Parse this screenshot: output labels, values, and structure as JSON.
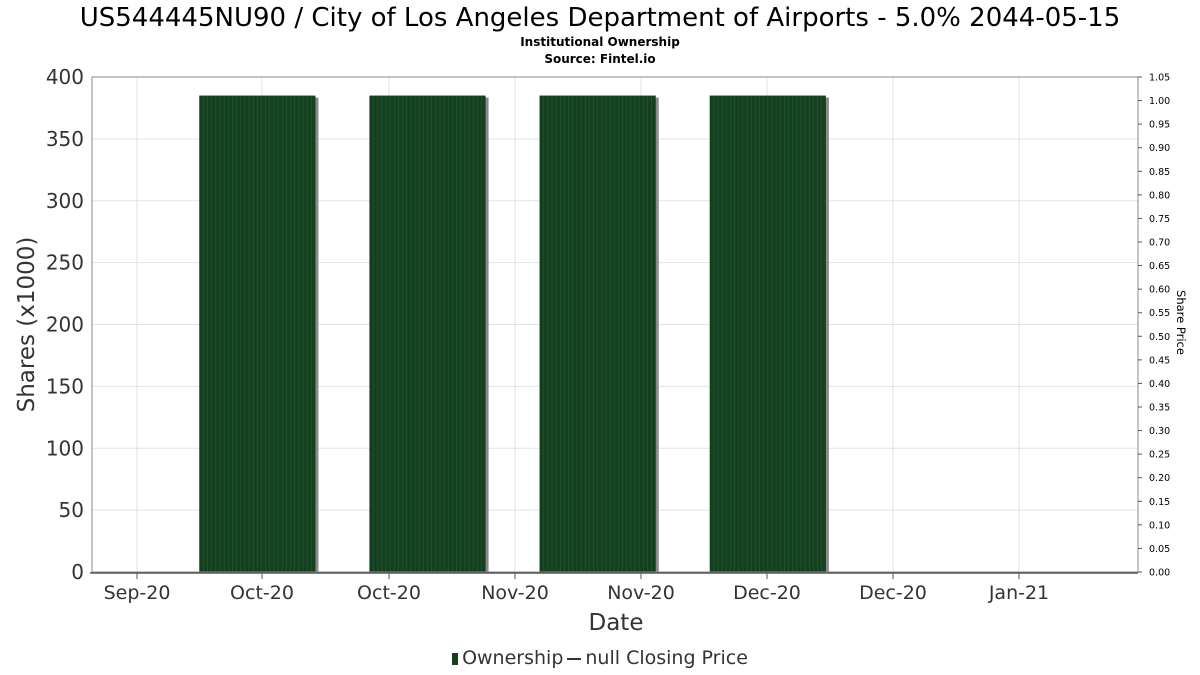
{
  "title": "US544445NU90 / City of Los Angeles Department of Airports - 5.0% 2044-05-15",
  "subtitle": "Institutional Ownership",
  "source": "Source: Fintel.io",
  "legend": {
    "ownership": "Ownership",
    "price": "null Closing Price"
  },
  "colors": {
    "bar": "#14401f",
    "bar_stripe": "#2c6636",
    "bar_shadow": "#8a8a8a",
    "grid": "#e3e3e3",
    "axis": "#888888"
  },
  "chart_data": {
    "type": "bar",
    "xlabel": "Date",
    "ylabel": "Shares (x1000)",
    "y2label": "Share Price",
    "ylim": [
      0,
      400
    ],
    "y2lim": [
      0,
      1.05
    ],
    "yticks": [
      0,
      50,
      100,
      150,
      200,
      250,
      300,
      350,
      400
    ],
    "y2ticks": [
      "0.00",
      "0.05",
      "0.10",
      "0.15",
      "0.20",
      "0.25",
      "0.30",
      "0.35",
      "0.40",
      "0.45",
      "0.50",
      "0.55",
      "0.60",
      "0.65",
      "0.70",
      "0.75",
      "0.80",
      "0.85",
      "0.90",
      "0.95",
      "1.00",
      "1.05"
    ],
    "xticks": [
      "Sep-20",
      "Oct-20",
      "Oct-20",
      "Nov-20",
      "Nov-20",
      "Dec-20",
      "Dec-20",
      "Jan-21"
    ],
    "series": [
      {
        "name": "Ownership",
        "bars": [
          {
            "start": "2020-09-30",
            "end": "2020-10-28",
            "value": 385
          },
          {
            "start": "2020-11-10",
            "end": "2020-12-08",
            "value": 385
          },
          {
            "start": "2020-12-21",
            "end": "2021-01-18",
            "value": 385
          },
          {
            "start": "2021-01-31",
            "end": "2021-02-28",
            "value": 385
          }
        ]
      }
    ],
    "grid": true,
    "legend_position": "bottom"
  }
}
